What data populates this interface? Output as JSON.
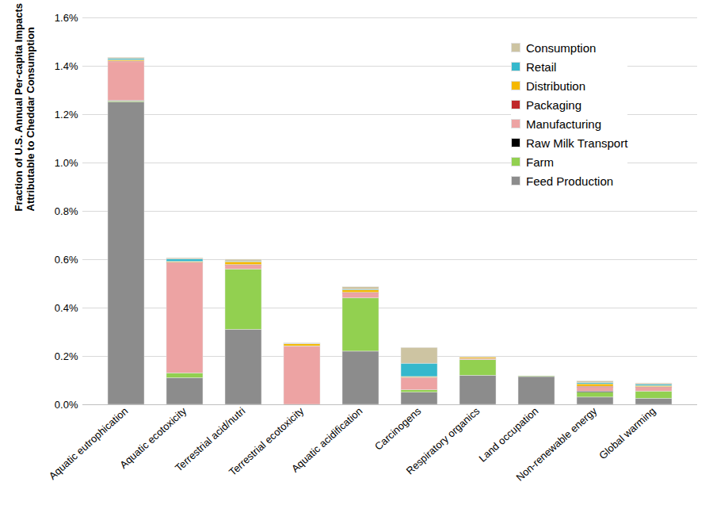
{
  "chart_data": {
    "type": "bar",
    "stacked": true,
    "y_label": "Fraction of U.S. Annual Per-capita Impacts\nAttributable to Cheddar Consumption",
    "categories": [
      "Aquatic eutrophication",
      "Aquatic ecotoxicity",
      "Terrestrial acid/nutri",
      "Terrestrial ecotoxicity",
      "Aquatic acidification",
      "Carcinogens",
      "Respiratory organics",
      "Land occupation",
      "Non-renewable energy",
      "Global warming"
    ],
    "series": [
      {
        "name": "Feed Production",
        "color": "#8c8c8c",
        "values": [
          1.25,
          0.11,
          0.31,
          0,
          0.22,
          0.05,
          0.12,
          0.115,
          0.03,
          0.025
        ]
      },
      {
        "name": "Farm",
        "color": "#92d050",
        "values": [
          0.005,
          0.02,
          0.25,
          0,
          0.22,
          0.01,
          0.065,
          0.003,
          0.02,
          0.03
        ]
      },
      {
        "name": "Raw Milk Transport",
        "color": "#000000",
        "values": [
          0.002,
          0,
          0,
          0,
          0,
          0,
          0,
          0,
          0.005,
          0
        ]
      },
      {
        "name": "Manufacturing",
        "color": "#eda3a3",
        "values": [
          0.16,
          0.455,
          0.015,
          0.24,
          0.02,
          0.05,
          0.005,
          0,
          0.015,
          0.015
        ]
      },
      {
        "name": "Packaging",
        "color": "#c0282b",
        "values": [
          0.003,
          0.003,
          0.003,
          0.002,
          0.003,
          0.002,
          0,
          0,
          0.005,
          0.003
        ]
      },
      {
        "name": "Distribution",
        "color": "#f5b800",
        "values": [
          0.005,
          0.003,
          0.012,
          0.008,
          0.01,
          0.003,
          0.005,
          0,
          0.01,
          0.005
        ]
      },
      {
        "name": "Retail",
        "color": "#35b8cc",
        "values": [
          0.005,
          0.01,
          0.003,
          0.002,
          0.003,
          0.055,
          0,
          0,
          0.005,
          0.005
        ]
      },
      {
        "name": "Consumption",
        "color": "#cdc4a2",
        "values": [
          0.005,
          0.005,
          0.007,
          0.002,
          0.01,
          0.065,
          0.003,
          0,
          0.007,
          0.005
        ]
      }
    ],
    "ylim": [
      0,
      1.6
    ],
    "yticks": [
      {
        "value": 0,
        "label": "0.0%"
      },
      {
        "value": 0.2,
        "label": "0.2%"
      },
      {
        "value": 0.4,
        "label": "0.4%"
      },
      {
        "value": 0.6,
        "label": "0.6%"
      },
      {
        "value": 0.8,
        "label": "0.8%"
      },
      {
        "value": 1.0,
        "label": "1.0%"
      },
      {
        "value": 1.2,
        "label": "1.2%"
      },
      {
        "value": 1.4,
        "label": "1.4%"
      },
      {
        "value": 1.6,
        "label": "1.6%"
      }
    ],
    "grid": true,
    "legend": "top-right"
  }
}
